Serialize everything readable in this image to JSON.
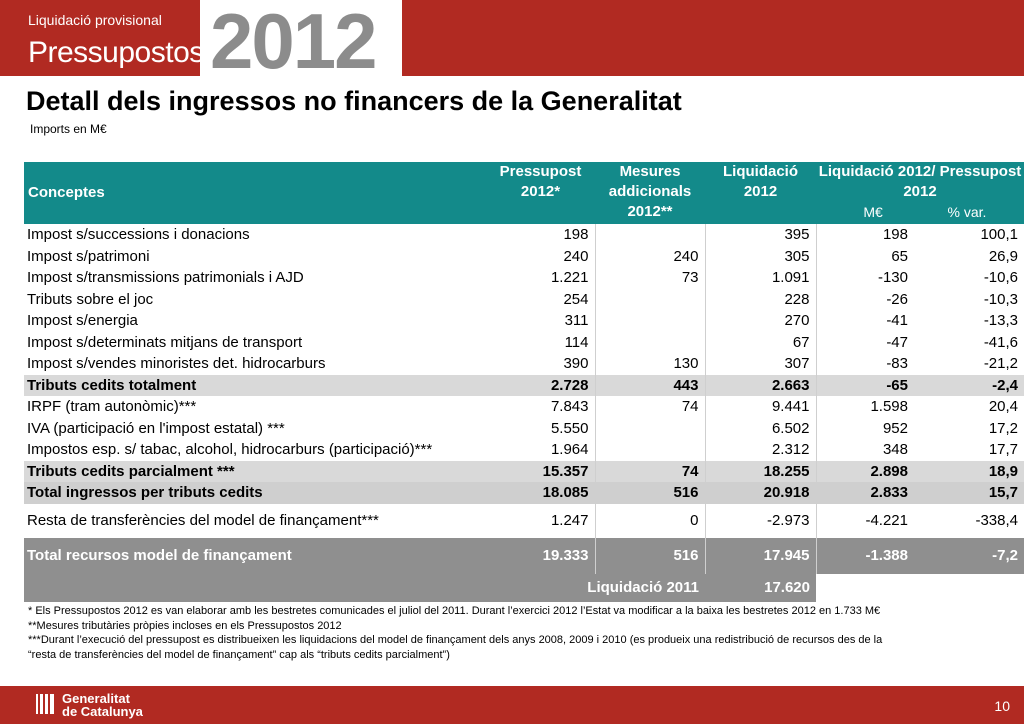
{
  "header": {
    "subtitle": "Liquidació provisional",
    "title": "Pressupostos",
    "year": "2012"
  },
  "page": {
    "title": "Detall dels ingressos no financers de la Generalitat",
    "units": "Imports en M€"
  },
  "table": {
    "headers": {
      "concept": "Conceptes",
      "budget": "Pressupost 2012*",
      "measures": "Mesures addicionals 2012**",
      "liquidation": "Liquidació 2012",
      "ratio": "Liquidació 2012/ Pressupost 2012",
      "ratio_me": "M€",
      "ratio_pct": "% var."
    },
    "rows": [
      {
        "label": "Impost s/successions i donacions",
        "budget": "198",
        "measures": "",
        "liquidation": "395",
        "me": "198",
        "pct": "100,1"
      },
      {
        "label": "Impost s/patrimoni",
        "budget": "240",
        "measures": "240",
        "liquidation": "305",
        "me": "65",
        "pct": "26,9"
      },
      {
        "label": "Impost s/transmissions patrimonials i AJD",
        "budget": "1.221",
        "measures": "73",
        "liquidation": "1.091",
        "me": "-130",
        "pct": "-10,6"
      },
      {
        "label": "Tributs sobre el joc",
        "budget": "254",
        "measures": "",
        "liquidation": "228",
        "me": "-26",
        "pct": "-10,3"
      },
      {
        "label": "Impost s/energia",
        "budget": "311",
        "measures": "",
        "liquidation": "270",
        "me": "-41",
        "pct": "-13,3"
      },
      {
        "label": "Impost s/determinats mitjans de transport",
        "budget": "114",
        "measures": "",
        "liquidation": "67",
        "me": "-47",
        "pct": "-41,6"
      },
      {
        "label": "Impost s/vendes minoristes det. hidrocarburs",
        "budget": "390",
        "measures": "130",
        "liquidation": "307",
        "me": "-83",
        "pct": "-21,2"
      },
      {
        "label": "Tributs cedits  totalment",
        "budget": "2.728",
        "measures": "443",
        "liquidation": "2.663",
        "me": "-65",
        "pct": "-2,4"
      },
      {
        "label": "IRPF (tram autonòmic)***",
        "budget": "7.843",
        "measures": "74",
        "liquidation": "9.441",
        "me": "1.598",
        "pct": "20,4"
      },
      {
        "label": "IVA (participació en l'impost estatal) ***",
        "budget": "5.550",
        "measures": "",
        "liquidation": "6.502",
        "me": "952",
        "pct": "17,2"
      },
      {
        "label": "Impostos esp. s/ tabac, alcohol, hidrocarburs (participació)***",
        "budget": "1.964",
        "measures": "",
        "liquidation": "2.312",
        "me": "348",
        "pct": "17,7"
      },
      {
        "label": "Tributs cedits parcialment ***",
        "budget": "15.357",
        "measures": "74",
        "liquidation": "18.255",
        "me": "2.898",
        "pct": "18,9"
      },
      {
        "label": "Total ingressos per tributs cedits",
        "budget": "18.085",
        "measures": "516",
        "liquidation": "20.918",
        "me": "2.833",
        "pct": "15,7"
      },
      {
        "label": "Resta de transferències del model de finançament***",
        "budget": "1.247",
        "measures": "0",
        "liquidation": "-2.973",
        "me": "-4.221",
        "pct": "-338,4"
      },
      {
        "label": "Total recursos model de finançament",
        "budget": "19.333",
        "measures": "516",
        "liquidation": "17.945",
        "me": "-1.388",
        "pct": "-7,2"
      }
    ],
    "liq2011": {
      "label": "Liquidació 2011",
      "value": "17.620"
    }
  },
  "notes": [
    "* Els Pressupostos 2012 es van elaborar amb les bestretes comunicades el juliol del 2011.  Durant l’exercici 2012 l’Estat va modificar a la baixa les bestretes 2012 en 1.733 M€",
    "**Mesures  tributàries pròpies incloses en els Pressupostos 2012",
    "***Durant l’execució del pressupost es distribueixen les liquidacions del model de finançament dels anys  2008, 2009 i 2010 (es produeix una redistribució de recursos des de la",
    "“resta de transferències del model de finançament” cap als “tributs cedits parcialment”)"
  ],
  "footer": {
    "logo_line1": "Generalitat",
    "logo_line2": "de Catalunya",
    "page_number": "10"
  },
  "colors": {
    "brand_red": "#b12a22",
    "header_teal": "#138a8a",
    "row_grey": "#d9d9d9",
    "total_dark": "#8f8f8f"
  }
}
